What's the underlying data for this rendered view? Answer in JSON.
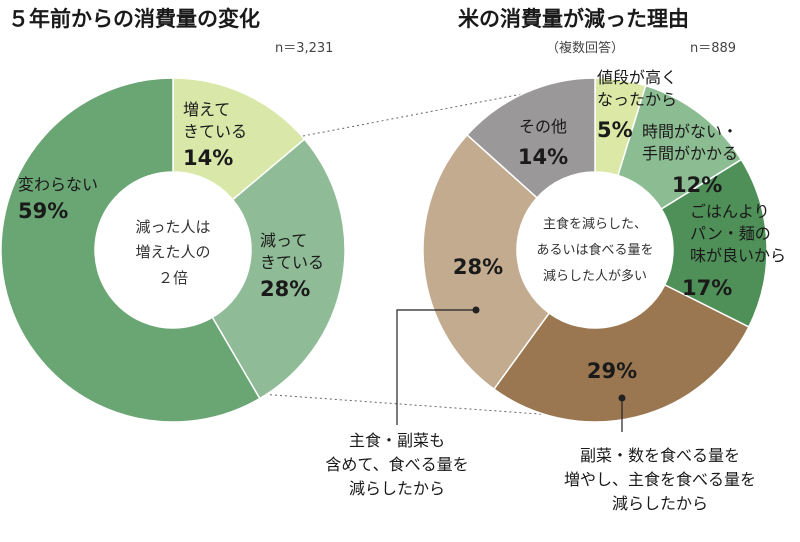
{
  "charts": {
    "left": {
      "title": "５年前からの消費量の変化",
      "n_label": "n＝3,231",
      "center_lines": [
        "減った人は",
        "増えた人の",
        "２倍"
      ]
    },
    "right": {
      "title": "米の消費量が減った理由",
      "subtitle": "（複数回答）",
      "n_label": "n＝889",
      "center_lines": [
        "主食を減らした、",
        "あるいは食べる量を",
        "減らした人が多い"
      ],
      "callout_left": [
        "主食・副菜も",
        "含めて、食べる量を",
        "減らしたから"
      ],
      "callout_right": [
        "副菜・数を食べる量を",
        "増やし、主食を食べる量を",
        "減らしたから"
      ]
    }
  },
  "chart_data": [
    {
      "type": "pie",
      "title": "５年前からの消費量の変化",
      "n": "n＝3,231",
      "slices": [
        {
          "label": "増えてきている",
          "lines": [
            "増えて",
            "きている"
          ],
          "value": 14,
          "value_label": "14%",
          "color": "#d9e8a8"
        },
        {
          "label": "減ってきている",
          "lines": [
            "減って",
            "きている"
          ],
          "value": 28,
          "value_label": "28%",
          "color": "#8fbc96"
        },
        {
          "label": "変わらない",
          "lines": [
            "変わらない"
          ],
          "value": 59,
          "value_label": "59%",
          "color": "#6aa574"
        }
      ]
    },
    {
      "type": "pie",
      "title": "米の消費量が減った理由",
      "subtitle": "（複数回答）",
      "n": "n＝889",
      "slices": [
        {
          "label": "値段が高くなったから",
          "lines": [
            "値段が高く",
            "なったから"
          ],
          "value": 5,
          "value_label": "5%",
          "color": "#dbe8a6"
        },
        {
          "label": "時間がない・手間がかかる",
          "lines": [
            "時間がない・",
            "手間がかかる"
          ],
          "value": 12,
          "value_label": "12%",
          "color": "#8cbc92"
        },
        {
          "label": "ごはんよりパン・麺の味が良いから",
          "lines": [
            "ごはんより",
            "パン・麺の",
            "味が良いから"
          ],
          "value": 17,
          "value_label": "17%",
          "color": "#4f8f58"
        },
        {
          "label": "副菜・数を食べる量を増やし、主食を食べる量を減らしたから",
          "lines": [],
          "value": 29,
          "value_label": "29%",
          "color": "#9a7750"
        },
        {
          "label": "主食・副菜も含めて、食べる量を減らしたから",
          "lines": [],
          "value": 28,
          "value_label": "28%",
          "color": "#c2ab8e"
        },
        {
          "label": "その他",
          "lines": [
            "その他"
          ],
          "value": 14,
          "value_label": "14%",
          "color": "#9a9898"
        }
      ]
    }
  ]
}
